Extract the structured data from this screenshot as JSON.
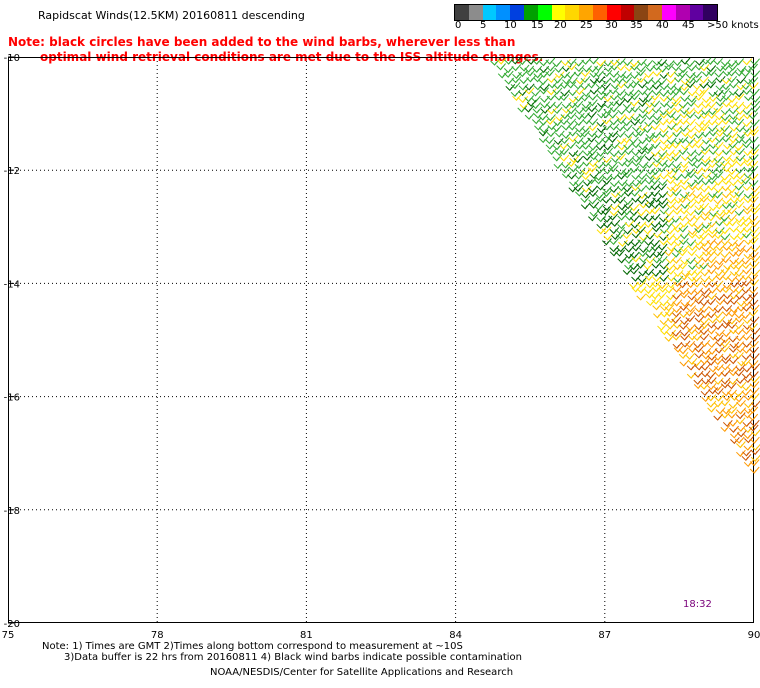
{
  "title": "Rapidscat Winds(12.5KM) 20160811 descending",
  "note": {
    "line1": "Note: black circles have been added to the wind barbs, wherever less than",
    "line2": "optimal wind retrieval conditions are met due to the ISS altitude changes."
  },
  "colorbar": {
    "colors": [
      "#404040",
      "#8c8c8c",
      "#00c8ff",
      "#0090ff",
      "#0040e0",
      "#00a000",
      "#00ff00",
      "#ffff00",
      "#ffd700",
      "#ffa500",
      "#ff6000",
      "#ff0000",
      "#c00000",
      "#8b4513",
      "#d2691e",
      "#ff00ff",
      "#b000b0",
      "#6000a0",
      "#300060"
    ],
    "labels": [
      "0",
      "5",
      "10",
      "15",
      "20",
      "25",
      "30",
      "35",
      "40",
      "45",
      ">50 knots"
    ]
  },
  "axes": {
    "x_ticks": [
      "75",
      "78",
      "81",
      "84",
      "87",
      "90"
    ],
    "y_ticks": [
      "-10",
      "-12",
      "-14",
      "-16",
      "-18",
      "-20"
    ],
    "x_range": [
      75,
      90
    ],
    "y_range": [
      -20,
      -10
    ]
  },
  "swath": {
    "polygon_lonlat": [
      [
        84.6,
        -10
      ],
      [
        90,
        -10
      ],
      [
        90,
        -17.5
      ]
    ],
    "colors": {
      "light_green": "#33aa33",
      "dark_green": "#006600",
      "yellow": "#ffe000",
      "gold": "#ffc000",
      "orange": "#ff9900",
      "dark_orange": "#cc5500"
    }
  },
  "time_label": "18:32",
  "footer": {
    "line1": "Note: 1) Times are GMT 2)Times along bottom correspond to measurement at ~10S",
    "line2": "3)Data buffer is 22 hrs from 20160811 4) Black wind barbs indicate possible contamination",
    "line3": "NOAA/NESDIS/Center for Satellite Applications and Research"
  }
}
